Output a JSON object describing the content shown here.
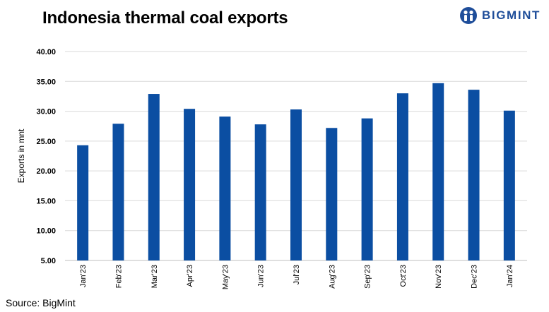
{
  "title": "Indonesia thermal coal exports",
  "logo": {
    "text": "BIGMINT",
    "color": "#1f4e9a"
  },
  "source": "Source: BigMint",
  "chart_data": {
    "type": "bar",
    "title": "Indonesia thermal coal exports",
    "xlabel": "",
    "ylabel": "Exports in mnt",
    "categories": [
      "Jan'23",
      "Feb'23",
      "Mar'23",
      "Apr'23",
      "May'23",
      "Jun'23",
      "Jul'23",
      "Aug'23",
      "Sep'23",
      "Oct'23",
      "Nov'23",
      "Dec'23",
      "Jan'24"
    ],
    "values": [
      24.3,
      27.9,
      32.9,
      30.4,
      29.1,
      27.8,
      30.3,
      27.2,
      28.8,
      33.0,
      34.7,
      33.6,
      30.1
    ],
    "ylim": [
      5,
      40
    ],
    "yticks": [
      "5.00",
      "10.00",
      "15.00",
      "20.00",
      "25.00",
      "30.00",
      "35.00",
      "40.00"
    ],
    "grid": true,
    "bar_color": "#0b4ea2"
  }
}
